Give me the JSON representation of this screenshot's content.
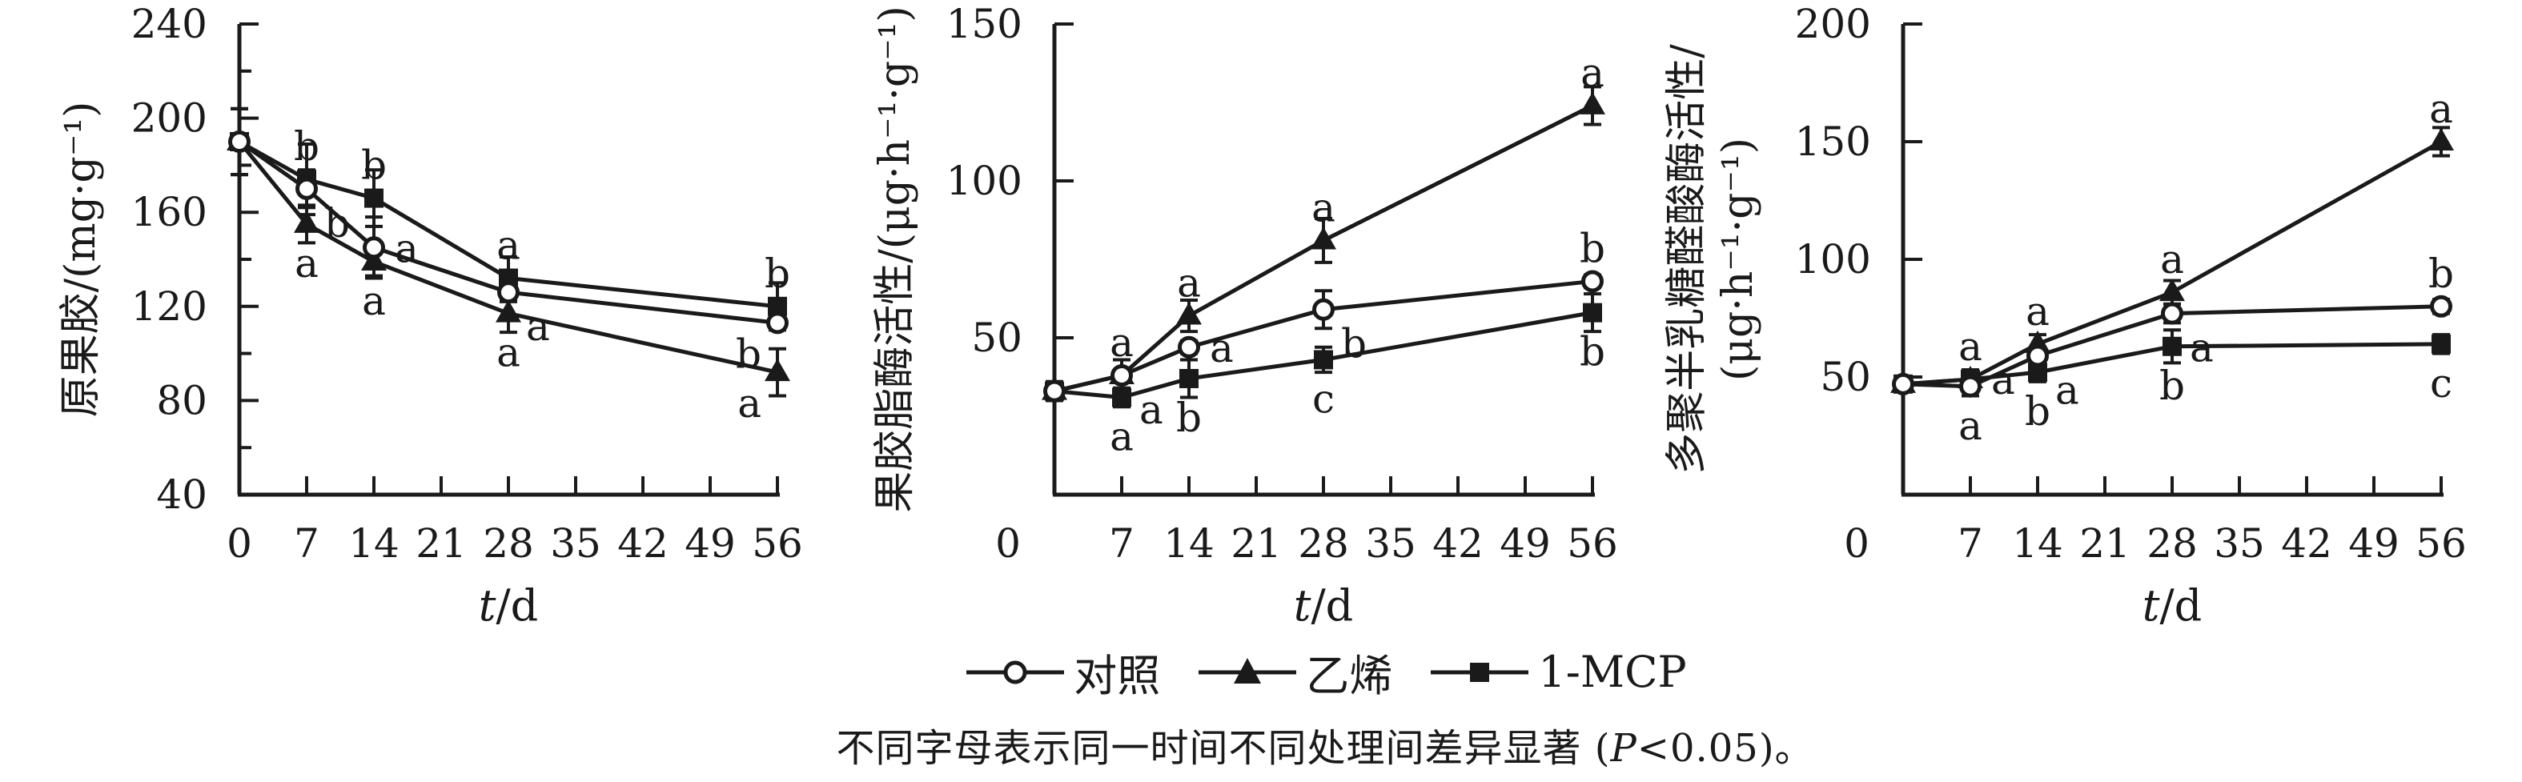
{
  "page": {
    "background": "#ffffff",
    "ink": "#1a1a1a"
  },
  "legend": {
    "items": [
      {
        "label": "对照",
        "marker": "circle-open"
      },
      {
        "label": "乙烯",
        "marker": "triangle-filled"
      },
      {
        "label": "1-MCP",
        "marker": "square-filled"
      }
    ]
  },
  "caption": {
    "prefix": "不同字母表示同一时间不同处理间差异显著 (",
    "p": "P",
    "suffix": "<0.05)。"
  },
  "chart_data": [
    {
      "type": "line",
      "name": "protopectin",
      "ylabel_lines": [
        "原果胶/(mg·g⁻¹)"
      ],
      "xlabel_italic": "t",
      "xlabel_rest": "/d",
      "ylim": [
        40,
        240
      ],
      "y_major_step": 40,
      "y_minor_step": 20,
      "x_ticks": [
        0,
        7,
        14,
        21,
        28,
        35,
        42,
        49,
        56
      ],
      "x_zero_label_shift": 0,
      "x_days": [
        0,
        7,
        14,
        28,
        56
      ],
      "grid": false,
      "series": [
        {
          "name": "对照",
          "key": "control",
          "marker": "circle-open",
          "values": [
            190,
            170,
            145,
            126,
            113
          ],
          "errors": [
            14,
            8,
            13,
            4,
            3
          ],
          "letters": [
            "",
            "b",
            "a",
            "a",
            "b"
          ],
          "letter_pos": [
            "",
            "below-right",
            "right",
            "below-right",
            "below-left"
          ]
        },
        {
          "name": "乙烯",
          "key": "ethylene",
          "marker": "triangle-filled",
          "values": [
            190,
            155,
            139,
            117,
            92
          ],
          "errors": [
            14,
            8,
            6,
            8,
            10
          ],
          "letters": [
            "",
            "a",
            "a",
            "a",
            "a"
          ],
          "letter_pos": [
            "",
            "below",
            "below",
            "below",
            "below-left"
          ]
        },
        {
          "name": "1-MCP",
          "key": "mcp",
          "marker": "square-filled",
          "values": [
            190,
            174,
            166,
            132,
            120
          ],
          "errors": [
            14,
            15,
            12,
            9,
            10
          ],
          "letters": [
            "",
            "b",
            "b",
            "a",
            "b"
          ],
          "letter_pos": [
            "",
            "above",
            "above",
            "above",
            "above"
          ]
        }
      ]
    },
    {
      "type": "line",
      "name": "pectinesterase-activity",
      "ylabel_lines": [
        "果胶脂酶活性/(μg·h⁻¹·g⁻¹)"
      ],
      "xlabel_italic": "t",
      "xlabel_rest": "/d",
      "ylim": [
        0,
        150
      ],
      "y_major_step": 50,
      "y_minor_step": null,
      "x_ticks": [
        0,
        7,
        14,
        21,
        28,
        35,
        42,
        49,
        56
      ],
      "x_zero_label_shift": -58,
      "x_days": [
        0,
        7,
        14,
        28,
        56
      ],
      "grid": false,
      "series": [
        {
          "name": "对照",
          "key": "control",
          "marker": "circle-open",
          "values": [
            33,
            38,
            47,
            59,
            68
          ],
          "errors": [
            3,
            5,
            2,
            6,
            2
          ],
          "letters": [
            "",
            "a",
            "a",
            "b",
            "b"
          ],
          "letter_pos": [
            "",
            "above",
            "right",
            "below-right",
            "above"
          ]
        },
        {
          "name": "乙烯",
          "key": "ethylene",
          "marker": "triangle-filled",
          "values": [
            33,
            38,
            57,
            81,
            124
          ],
          "errors": [
            3,
            5,
            5,
            7,
            6
          ],
          "letters": [
            "",
            "a",
            "a",
            "a",
            "a"
          ],
          "letter_pos": [
            "",
            "below-right",
            "above",
            "above",
            "above"
          ]
        },
        {
          "name": "1-MCP",
          "key": "mcp",
          "marker": "square-filled",
          "values": [
            33,
            31,
            37,
            43,
            58
          ],
          "errors": [
            3,
            3,
            6,
            4,
            6
          ],
          "letters": [
            "",
            "a",
            "b",
            "c",
            "b"
          ],
          "letter_pos": [
            "",
            "below",
            "below",
            "below",
            "below"
          ]
        }
      ]
    },
    {
      "type": "line",
      "name": "polygalacturonase-activity",
      "ylabel_lines": [
        "多聚半乳糖醛酸酶活性/",
        "(μg·h⁻¹·g⁻¹)"
      ],
      "xlabel_italic": "t",
      "xlabel_rest": "/d",
      "ylim": [
        0,
        200
      ],
      "y_major_step": 50,
      "y_minor_step": null,
      "x_ticks": [
        0,
        7,
        14,
        21,
        28,
        35,
        42,
        49,
        56
      ],
      "x_zero_label_shift": -58,
      "x_days": [
        0,
        7,
        14,
        28,
        56
      ],
      "grid": false,
      "series": [
        {
          "name": "对照",
          "key": "control",
          "marker": "circle-open",
          "values": [
            47,
            46,
            59,
            77,
            80
          ],
          "errors": [
            3,
            4,
            3,
            4,
            3
          ],
          "letters": [
            "",
            "a",
            "a",
            "a",
            "b"
          ],
          "letter_pos": [
            "",
            "below",
            "below-right",
            "below-right",
            "above"
          ]
        },
        {
          "name": "乙烯",
          "key": "ethylene",
          "marker": "triangle-filled",
          "values": [
            47,
            49,
            64,
            86,
            150
          ],
          "errors": [
            3,
            4,
            4,
            5,
            6
          ],
          "letters": [
            "",
            "a",
            "a",
            "a",
            "a"
          ],
          "letter_pos": [
            "",
            "right",
            "above",
            "above",
            "above"
          ]
        },
        {
          "name": "1-MCP",
          "key": "mcp",
          "marker": "square-filled",
          "values": [
            47,
            49,
            52,
            63,
            64
          ],
          "errors": [
            3,
            4,
            4,
            7,
            4
          ],
          "letters": [
            "",
            "a",
            "b",
            "b",
            "c"
          ],
          "letter_pos": [
            "",
            "above",
            "below",
            "below",
            "below"
          ]
        }
      ]
    }
  ]
}
